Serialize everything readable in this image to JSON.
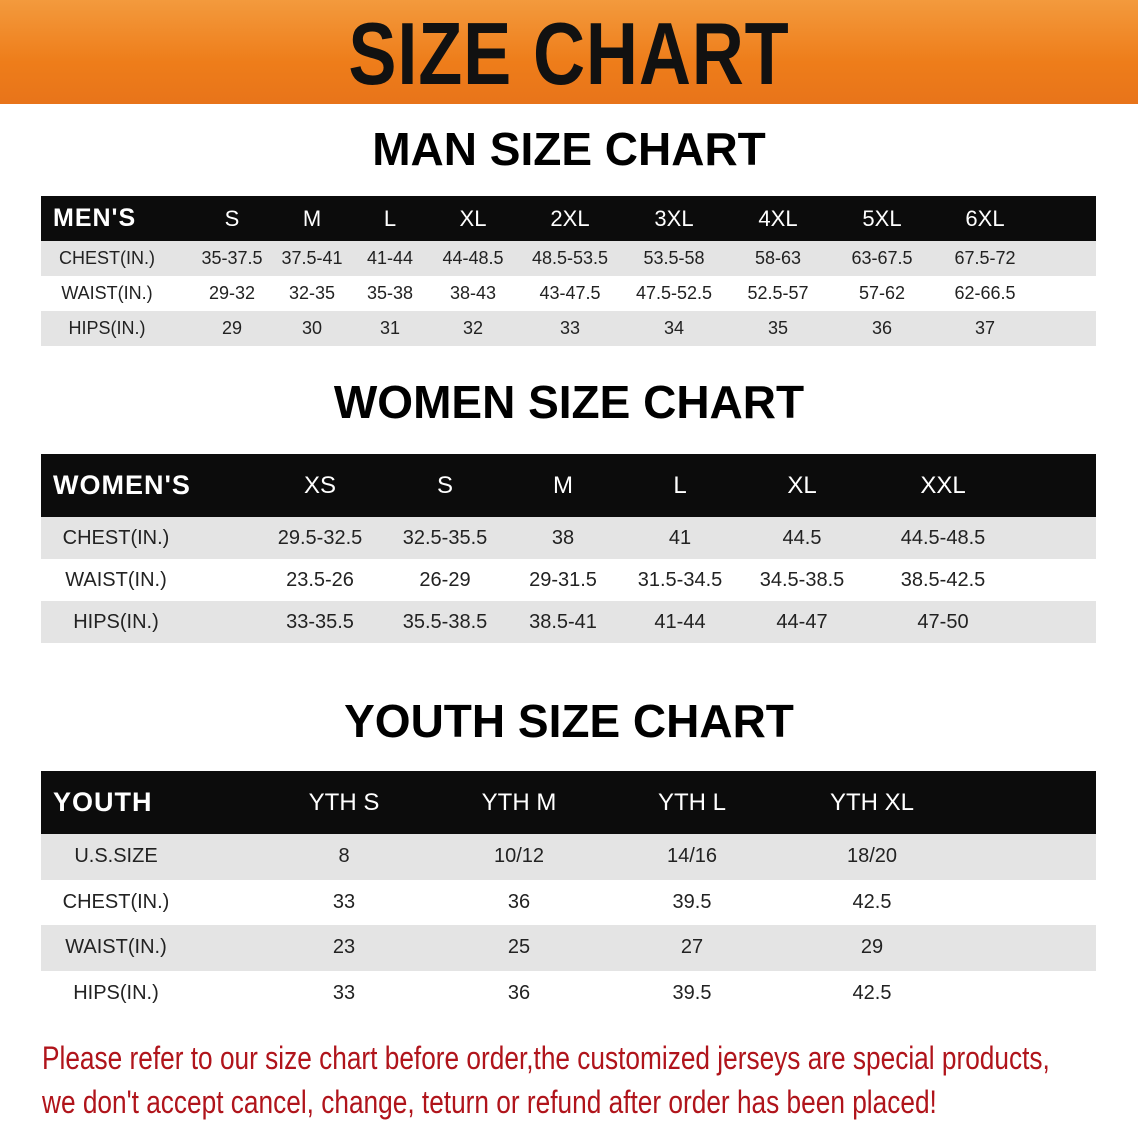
{
  "banner_title": "SIZE CHART",
  "men": {
    "title": "MAN SIZE CHART",
    "header": [
      "MEN'S",
      "S",
      "M",
      "L",
      "XL",
      "2XL",
      "3XL",
      "4XL",
      "5XL",
      "6XL"
    ],
    "rows": [
      [
        "CHEST(IN.)",
        "35-37.5",
        "37.5-41",
        "41-44",
        "44-48.5",
        "48.5-53.5",
        "53.5-58",
        "58-63",
        "63-67.5",
        "67.5-72"
      ],
      [
        "WAIST(IN.)",
        "29-32",
        "32-35",
        "35-38",
        "38-43",
        "43-47.5",
        "47.5-52.5",
        "52.5-57",
        "57-62",
        "62-66.5"
      ],
      [
        "HIPS(IN.)",
        "29",
        "30",
        "31",
        "32",
        "33",
        "34",
        "35",
        "36",
        "37"
      ]
    ]
  },
  "women": {
    "title": "WOMEN SIZE CHART",
    "header": [
      "WOMEN'S",
      "XS",
      "S",
      "M",
      "L",
      "XL",
      "XXL"
    ],
    "rows": [
      [
        "CHEST(IN.)",
        "29.5-32.5",
        "32.5-35.5",
        "38",
        "41",
        "44.5",
        "44.5-48.5"
      ],
      [
        "WAIST(IN.)",
        "23.5-26",
        "26-29",
        "29-31.5",
        "31.5-34.5",
        "34.5-38.5",
        "38.5-42.5"
      ],
      [
        "HIPS(IN.)",
        "33-35.5",
        "35.5-38.5",
        "38.5-41",
        "41-44",
        "44-47",
        "47-50"
      ]
    ]
  },
  "youth": {
    "title": "YOUTH SIZE CHART",
    "header": [
      "YOUTH",
      "YTH S",
      "YTH M",
      "YTH L",
      "YTH XL"
    ],
    "rows": [
      [
        "U.S.SIZE",
        "8",
        "10/12",
        "14/16",
        "18/20"
      ],
      [
        "CHEST(IN.)",
        "33",
        "36",
        "39.5",
        "42.5"
      ],
      [
        "WAIST(IN.)",
        "23",
        "25",
        "27",
        "29"
      ],
      [
        "HIPS(IN.)",
        "33",
        "36",
        "39.5",
        "42.5"
      ]
    ]
  },
  "note": {
    "line1": "Please refer to our size chart before order,the customized jerseys are special products,",
    "line2": "we don't accept cancel, change, teturn or refund after order has been placed!"
  },
  "colors": {
    "banner": "#ee7d1a",
    "header_row": "#0c0c0c",
    "stripe": "#e4e4e4",
    "note": "#b0141b"
  }
}
